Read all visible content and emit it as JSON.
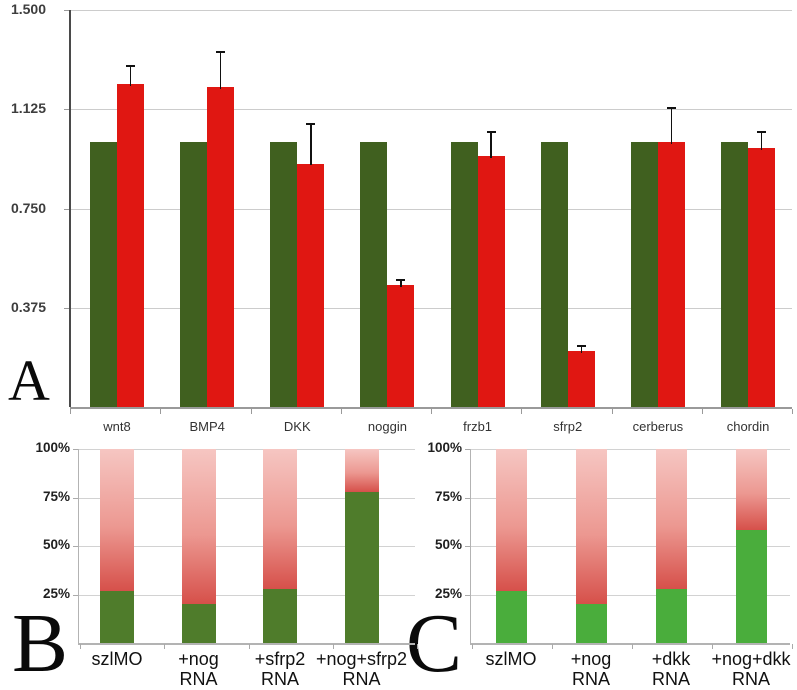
{
  "panel_letters": {
    "a": "A",
    "b": "B",
    "c": "C"
  },
  "colors": {
    "panel_a_green": "#40601f",
    "panel_a_red": "#e01712",
    "panel_b_green": "#4f7c2b",
    "panel_c_green": "#4aad3c",
    "red_gradient_top": "#f6c6c2",
    "red_gradient_mid": "#ec9891",
    "red_gradient_bottom": "#d6504a",
    "gridline": "#cccccc",
    "axis_dark": "#4a4a4a",
    "axis_light": "#b3b3b3",
    "error_bar": "#111111",
    "tick_label": "#3d3d3d",
    "category_label_a": "#333333",
    "category_label_bc": "#111111"
  },
  "chart_data": [
    {
      "id": "panel_a",
      "type": "bar",
      "panel_label": "A",
      "title": "",
      "xlabel": "",
      "ylabel": "",
      "grid": true,
      "legend": "none",
      "ylim": [
        0,
        1.5
      ],
      "yticks": [
        {
          "label": "1.500",
          "value": 1.5
        },
        {
          "label": "1.125",
          "value": 1.125
        },
        {
          "label": "0.750",
          "value": 0.75
        },
        {
          "label": "0.375",
          "value": 0.375
        }
      ],
      "categories": [
        "wnt8",
        "BMP4",
        "DKK",
        "noggin",
        "frzb1",
        "sfrp2",
        "cerberus",
        "chordin"
      ],
      "series": [
        {
          "name": "green",
          "values": [
            1.0,
            1.0,
            1.0,
            1.0,
            1.0,
            1.0,
            1.0,
            1.0
          ],
          "errors": [
            0,
            0,
            0,
            0,
            0,
            0,
            0,
            0
          ]
        },
        {
          "name": "red",
          "values": [
            1.22,
            1.21,
            0.92,
            0.46,
            0.95,
            0.21,
            1.0,
            0.98
          ],
          "errors": [
            0.07,
            0.13,
            0.15,
            0.02,
            0.09,
            0.02,
            0.13,
            0.06
          ]
        }
      ]
    },
    {
      "id": "panel_b",
      "type": "stacked_bar_percent",
      "panel_label": "B",
      "grid": true,
      "legend": "none",
      "ylim": [
        0,
        100
      ],
      "yticks": [
        {
          "label": "100%",
          "value": 100
        },
        {
          "label": "75%",
          "value": 75
        },
        {
          "label": "50%",
          "value": 50
        },
        {
          "label": "25%",
          "value": 25
        }
      ],
      "categories": [
        [
          "szlMO"
        ],
        [
          "+nog",
          "RNA"
        ],
        [
          "+sfrp2",
          "RNA"
        ],
        [
          "+nog+sfrp2",
          "RNA"
        ]
      ],
      "series": [
        {
          "name": "green",
          "values": [
            27,
            20,
            28,
            78
          ]
        },
        {
          "name": "red",
          "values": [
            73,
            80,
            72,
            22
          ]
        }
      ]
    },
    {
      "id": "panel_c",
      "type": "stacked_bar_percent",
      "panel_label": "C",
      "grid": true,
      "legend": "none",
      "ylim": [
        0,
        100
      ],
      "yticks": [
        {
          "label": "100%",
          "value": 100
        },
        {
          "label": "75%",
          "value": 75
        },
        {
          "label": "50%",
          "value": 50
        },
        {
          "label": "25%",
          "value": 25
        }
      ],
      "categories": [
        [
          "szlMO"
        ],
        [
          "+nog",
          "RNA"
        ],
        [
          "+dkk",
          "RNA"
        ],
        [
          "+nog+dkk",
          "RNA"
        ]
      ],
      "series": [
        {
          "name": "green",
          "values": [
            27,
            20,
            28,
            58
          ]
        },
        {
          "name": "red",
          "values": [
            73,
            80,
            72,
            42
          ]
        }
      ]
    }
  ]
}
